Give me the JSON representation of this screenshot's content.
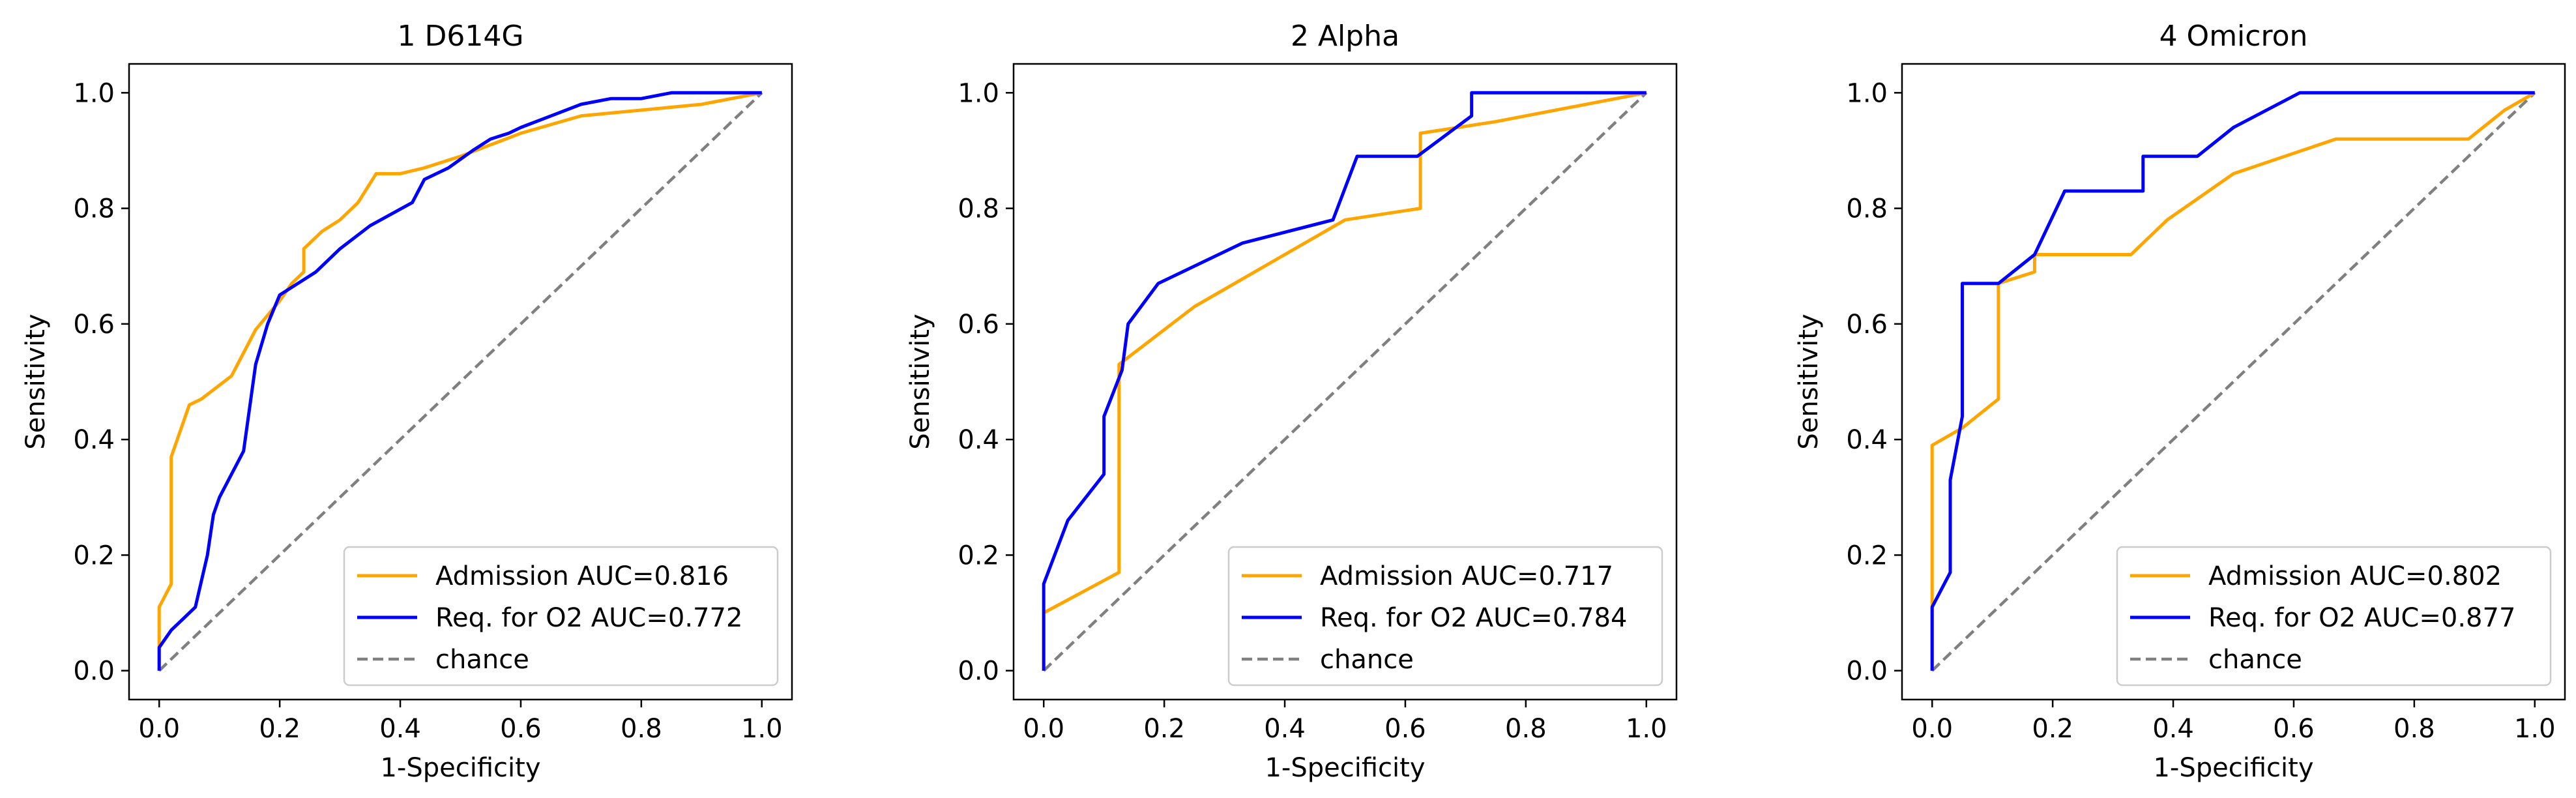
{
  "chart_data": [
    {
      "type": "line",
      "title": "1 D614G",
      "xlabel": "1-Specificity",
      "ylabel": "Sensitivity",
      "xlim": [
        -0.05,
        1.05
      ],
      "ylim": [
        -0.05,
        1.05
      ],
      "xticks": [
        "0.0",
        "0.2",
        "0.4",
        "0.6",
        "0.8",
        "1.0"
      ],
      "yticks": [
        "0.0",
        "0.2",
        "0.4",
        "0.6",
        "0.8",
        "1.0"
      ],
      "grid": false,
      "legend_loc": "lower right",
      "series": [
        {
          "name": "Admission AUC=0.816",
          "color": "#FFA500",
          "style": "solid",
          "x": [
            0,
            0,
            0.02,
            0.02,
            0.05,
            0.07,
            0.12,
            0.14,
            0.16,
            0.2,
            0.22,
            0.24,
            0.24,
            0.27,
            0.3,
            0.33,
            0.36,
            0.4,
            0.44,
            0.5,
            0.55,
            0.6,
            0.7,
            0.8,
            0.9,
            1.0
          ],
          "y": [
            0,
            0.11,
            0.15,
            0.37,
            0.46,
            0.47,
            0.51,
            0.55,
            0.59,
            0.64,
            0.67,
            0.69,
            0.73,
            0.76,
            0.78,
            0.81,
            0.86,
            0.86,
            0.87,
            0.89,
            0.91,
            0.93,
            0.96,
            0.97,
            0.98,
            1.0
          ]
        },
        {
          "name": "Req. for O2 AUC=0.772",
          "color": "#0000FF",
          "style": "solid",
          "x": [
            0,
            0,
            0.02,
            0.04,
            0.06,
            0.08,
            0.09,
            0.1,
            0.12,
            0.14,
            0.16,
            0.18,
            0.2,
            0.23,
            0.26,
            0.3,
            0.35,
            0.42,
            0.44,
            0.48,
            0.52,
            0.55,
            0.58,
            0.6,
            0.65,
            0.7,
            0.75,
            0.8,
            0.85,
            0.9,
            1.0
          ],
          "y": [
            0,
            0.04,
            0.07,
            0.09,
            0.11,
            0.2,
            0.27,
            0.3,
            0.34,
            0.38,
            0.53,
            0.6,
            0.65,
            0.67,
            0.69,
            0.73,
            0.77,
            0.81,
            0.85,
            0.87,
            0.9,
            0.92,
            0.93,
            0.94,
            0.96,
            0.98,
            0.99,
            0.99,
            1.0,
            1.0,
            1.0
          ]
        },
        {
          "name": "chance",
          "color": "#808080",
          "style": "dashed",
          "x": [
            0,
            1
          ],
          "y": [
            0,
            1
          ]
        }
      ]
    },
    {
      "type": "line",
      "title": "2 Alpha",
      "xlabel": "1-Specificity",
      "ylabel": "Sensitivity",
      "xlim": [
        -0.05,
        1.05
      ],
      "ylim": [
        -0.05,
        1.05
      ],
      "xticks": [
        "0.0",
        "0.2",
        "0.4",
        "0.6",
        "0.8",
        "1.0"
      ],
      "yticks": [
        "0.0",
        "0.2",
        "0.4",
        "0.6",
        "0.8",
        "1.0"
      ],
      "grid": false,
      "legend_loc": "lower right",
      "series": [
        {
          "name": "Admission AUC=0.717",
          "color": "#FFA500",
          "style": "solid",
          "x": [
            0,
            0,
            0.125,
            0.125,
            0.25,
            0.5,
            0.625,
            0.625,
            0.75,
            1.0
          ],
          "y": [
            0,
            0.1,
            0.17,
            0.53,
            0.63,
            0.78,
            0.8,
            0.93,
            0.95,
            1.0
          ],
          "steps": false
        },
        {
          "name": "Req. for O2 AUC=0.784",
          "color": "#0000FF",
          "style": "solid",
          "x": [
            0,
            0,
            0.04,
            0.1,
            0.1,
            0.13,
            0.14,
            0.14,
            0.19,
            0.33,
            0.48,
            0.52,
            0.62,
            0.71,
            0.71,
            1.0
          ],
          "y": [
            0,
            0.15,
            0.26,
            0.34,
            0.44,
            0.52,
            0.6,
            0.6,
            0.67,
            0.74,
            0.78,
            0.89,
            0.89,
            0.96,
            1.0,
            1.0
          ]
        },
        {
          "name": "chance",
          "color": "#808080",
          "style": "dashed",
          "x": [
            0,
            1
          ],
          "y": [
            0,
            1
          ]
        }
      ]
    },
    {
      "type": "line",
      "title": "4 Omicron",
      "xlabel": "1-Specificity",
      "ylabel": "Sensitivity",
      "xlim": [
        -0.05,
        1.05
      ],
      "ylim": [
        -0.05,
        1.05
      ],
      "xticks": [
        "0.0",
        "0.2",
        "0.4",
        "0.6",
        "0.8",
        "1.0"
      ],
      "yticks": [
        "0.0",
        "0.2",
        "0.4",
        "0.6",
        "0.8",
        "1.0"
      ],
      "grid": false,
      "legend_loc": "lower right",
      "series": [
        {
          "name": "Admission AUC=0.802",
          "color": "#FFA500",
          "style": "solid",
          "x": [
            0,
            0,
            0.05,
            0.11,
            0.11,
            0.17,
            0.17,
            0.22,
            0.33,
            0.39,
            0.5,
            0.67,
            0.89,
            0.95,
            1.0
          ],
          "y": [
            0,
            0.39,
            0.42,
            0.47,
            0.67,
            0.69,
            0.72,
            0.72,
            0.72,
            0.78,
            0.86,
            0.92,
            0.92,
            0.97,
            1.0
          ]
        },
        {
          "name": "Req. for O2 AUC=0.877",
          "color": "#0000FF",
          "style": "solid",
          "x": [
            0,
            0,
            0.03,
            0.03,
            0.05,
            0.05,
            0.11,
            0.17,
            0.22,
            0.33,
            0.35,
            0.35,
            0.44,
            0.5,
            0.61,
            0.72,
            1.0
          ],
          "y": [
            0,
            0.11,
            0.17,
            0.33,
            0.44,
            0.67,
            0.67,
            0.72,
            0.83,
            0.83,
            0.83,
            0.89,
            0.89,
            0.94,
            1.0,
            1.0,
            1.0
          ]
        },
        {
          "name": "chance",
          "color": "#808080",
          "style": "dashed",
          "x": [
            0,
            1
          ],
          "y": [
            0,
            1
          ]
        }
      ]
    }
  ]
}
